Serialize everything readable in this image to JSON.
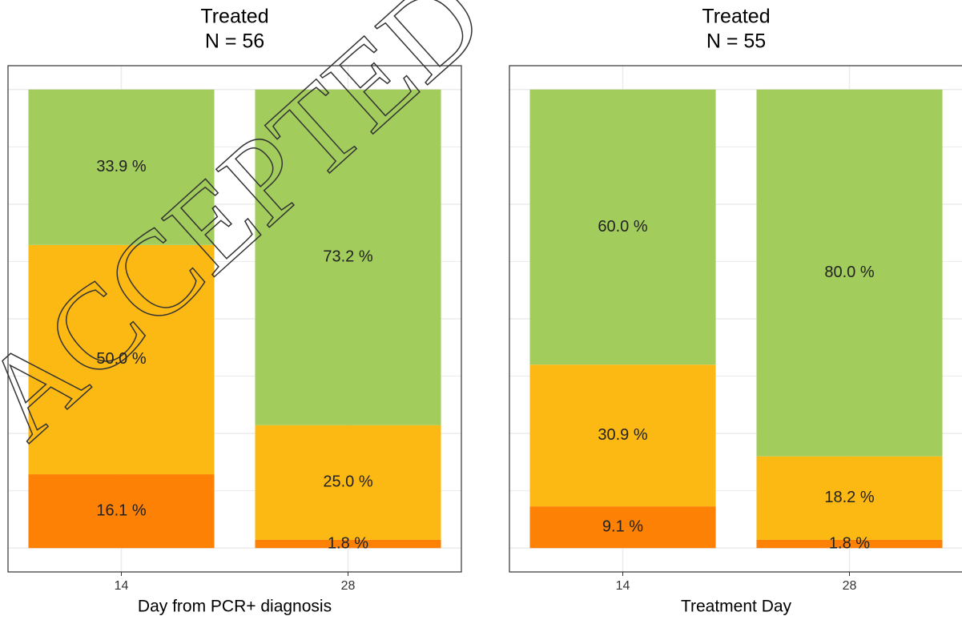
{
  "chart_data": [
    {
      "type": "stacked_bar",
      "title": "Treated",
      "subtitle": "N = 56",
      "x_label": "Day from PCR+ diagnosis",
      "categories": [
        "14",
        "28"
      ],
      "series": [
        {
          "color": "#fd8104",
          "values": [
            16.1,
            1.8
          ],
          "value_labels": [
            "16.1 %",
            "1.8 %"
          ]
        },
        {
          "color": "#fdb913",
          "values": [
            50.0,
            25.0
          ],
          "value_labels": [
            "50.0 %",
            "25.0 %"
          ]
        },
        {
          "color": "#a2cc5c",
          "values": [
            33.9,
            73.2
          ],
          "value_labels": [
            "33.9 %",
            "73.2 %"
          ]
        }
      ],
      "ylim": [
        -5.2,
        105.2
      ],
      "ygrid": [
        0,
        12.5,
        25,
        37.5,
        50,
        62.5,
        75,
        87.5,
        100
      ],
      "grid": true
    },
    {
      "type": "stacked_bar",
      "title": "Treated",
      "subtitle": "N = 55",
      "x_label": "Treatment Day",
      "categories": [
        "14",
        "28"
      ],
      "series": [
        {
          "color": "#fd8104",
          "values": [
            9.1,
            1.8
          ],
          "value_labels": [
            "9.1 %",
            "1.8 %"
          ]
        },
        {
          "color": "#fdb913",
          "values": [
            30.9,
            18.2
          ],
          "value_labels": [
            "30.9 %",
            "18.2 %"
          ]
        },
        {
          "color": "#a2cc5c",
          "values": [
            60.0,
            80.0
          ],
          "value_labels": [
            "60.0 %",
            "80.0 %"
          ]
        }
      ],
      "ylim": [
        -5.2,
        105.2
      ],
      "ygrid": [
        0,
        12.5,
        25,
        37.5,
        50,
        62.5,
        75,
        87.5,
        100
      ],
      "grid": true
    }
  ],
  "watermark": "ACCEPTED"
}
